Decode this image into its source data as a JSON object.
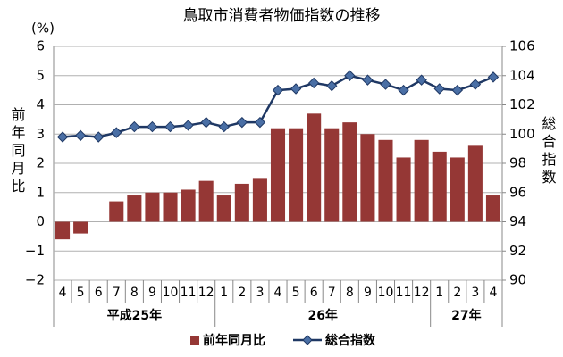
{
  "chart_data": {
    "type": "bar",
    "title": "鳥取市消費者物価指数の推移",
    "y_unit": "(%)",
    "ylabel": "前年同月比",
    "y2label": "総合指数",
    "groups": [
      {
        "name": "平成25年",
        "categories": [
          "4",
          "5",
          "6",
          "7",
          "8",
          "9",
          "10",
          "11",
          "12"
        ]
      },
      {
        "name": "26年",
        "categories": [
          "1",
          "2",
          "3",
          "4",
          "5",
          "6",
          "7",
          "8",
          "9",
          "10",
          "11",
          "12"
        ]
      },
      {
        "name": "27年",
        "categories": [
          "1",
          "2",
          "3",
          "4"
        ]
      }
    ],
    "series": [
      {
        "name": "前年同月比",
        "type": "bar",
        "color": "#953735",
        "values": [
          -0.6,
          -0.4,
          0.0,
          0.7,
          0.9,
          1.0,
          1.0,
          1.1,
          1.4,
          0.9,
          1.3,
          1.5,
          3.2,
          3.2,
          3.7,
          3.2,
          3.4,
          3.0,
          2.8,
          2.2,
          2.8,
          2.4,
          2.2,
          2.6,
          0.9
        ]
      },
      {
        "name": "総合指数",
        "type": "line",
        "axis": "y2",
        "color": "#1f3864",
        "marker_color": "#4a6fa5",
        "values": [
          99.8,
          99.9,
          99.8,
          100.1,
          100.5,
          100.5,
          100.5,
          100.6,
          100.8,
          100.5,
          100.8,
          100.8,
          103.0,
          103.1,
          103.5,
          103.3,
          104.0,
          103.7,
          103.4,
          103.0,
          103.7,
          103.1,
          103.0,
          103.4,
          103.9
        ]
      }
    ],
    "ylim": [
      -2,
      6
    ],
    "yticks": [
      {
        "value": -2,
        "label": "−2"
      },
      {
        "value": -1,
        "label": "−1"
      },
      0,
      1,
      2,
      3,
      4,
      5,
      6
    ],
    "y2lim": [
      90,
      106
    ],
    "y2ticks": [
      90,
      92,
      94,
      96,
      98,
      100,
      102,
      104,
      106
    ],
    "grid": true,
    "legend": "bottom"
  }
}
